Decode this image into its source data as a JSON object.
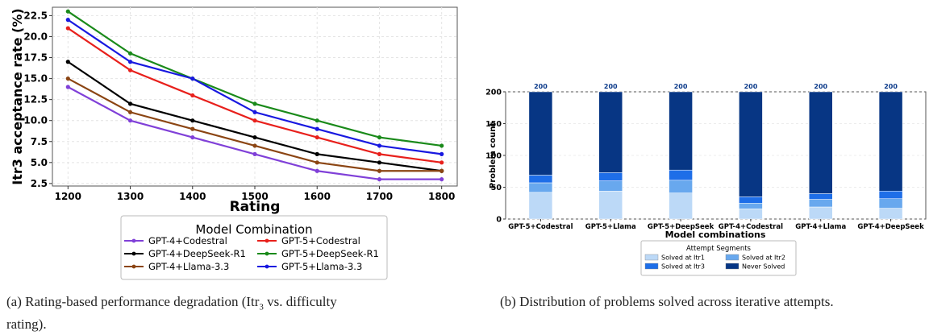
{
  "captions": {
    "a_prefix": "(a) Rating-based performance degradation (Itr",
    "a_sub": "3",
    "a_suffix": " vs. difficulty",
    "a_line2": "rating).",
    "b": "(b) Distribution of problems solved across iterative attempts."
  },
  "chart_data": [
    {
      "type": "line",
      "title": "",
      "xlabel": "Rating",
      "ylabel": "Itr3 acceptance rate (%)",
      "x": [
        1200,
        1300,
        1400,
        1500,
        1600,
        1700,
        1800
      ],
      "xlim": [
        1175,
        1825
      ],
      "ylim": [
        2.2,
        23.5
      ],
      "yticks": [
        "2.5",
        "5.0",
        "7.5",
        "10.0",
        "12.5",
        "15.0",
        "17.5",
        "20.0",
        "22.5"
      ],
      "grid": true,
      "legend_title": "Model Combination",
      "legend_position": "below",
      "series": [
        {
          "name": "GPT-4+Codestral",
          "color": "#8040d8",
          "values": [
            14,
            10,
            8,
            6,
            4,
            3,
            3
          ]
        },
        {
          "name": "GPT-5+Codestral",
          "color": "#e8201c",
          "values": [
            21,
            16,
            13,
            10,
            8,
            6,
            5
          ]
        },
        {
          "name": "GPT-4+DeepSeek-R1",
          "color": "#000000",
          "values": [
            17,
            12,
            10,
            8,
            6,
            5,
            4
          ]
        },
        {
          "name": "GPT-5+DeepSeek-R1",
          "color": "#1a8a1a",
          "values": [
            23,
            18,
            15,
            12,
            10,
            8,
            7
          ]
        },
        {
          "name": "GPT-4+Llama-3.3",
          "color": "#8b4513",
          "values": [
            15,
            11,
            9,
            7,
            5,
            4,
            4
          ]
        },
        {
          "name": "GPT-5+Llama-3.3",
          "color": "#1818e0",
          "values": [
            22,
            17,
            15,
            11,
            9,
            7,
            6
          ]
        }
      ]
    },
    {
      "type": "bar",
      "stacked": true,
      "title": "",
      "xlabel": "Model combinations",
      "ylabel": "Problem count",
      "ylim": [
        0,
        200
      ],
      "yticks": [
        "0",
        "50",
        "100",
        "150",
        "200"
      ],
      "categories": [
        "GPT-5+Codestral",
        "GPT-5+Llama",
        "GPT-5+DeepSeek",
        "GPT-4+Codestral",
        "GPT-4+Llama",
        "GPT-4+DeepSeek"
      ],
      "totals": [
        "200",
        "200",
        "200",
        "200",
        "200",
        "200"
      ],
      "legend_title": "Attempt Segments",
      "legend_position": "below",
      "series": [
        {
          "name": "Solved at Itr1",
          "color": "#bcd9f7",
          "values": [
            42,
            44,
            41,
            16,
            19,
            17
          ]
        },
        {
          "name": "Solved at Itr2",
          "color": "#68a8ee",
          "values": [
            15,
            16,
            20,
            9,
            12,
            15
          ]
        },
        {
          "name": "Solved at Itr3",
          "color": "#1e6ee8",
          "values": [
            12,
            13,
            16,
            10,
            9,
            12
          ]
        },
        {
          "name": "Never Solved",
          "color": "#073684",
          "values": [
            131,
            127,
            123,
            165,
            160,
            156
          ]
        }
      ]
    }
  ]
}
